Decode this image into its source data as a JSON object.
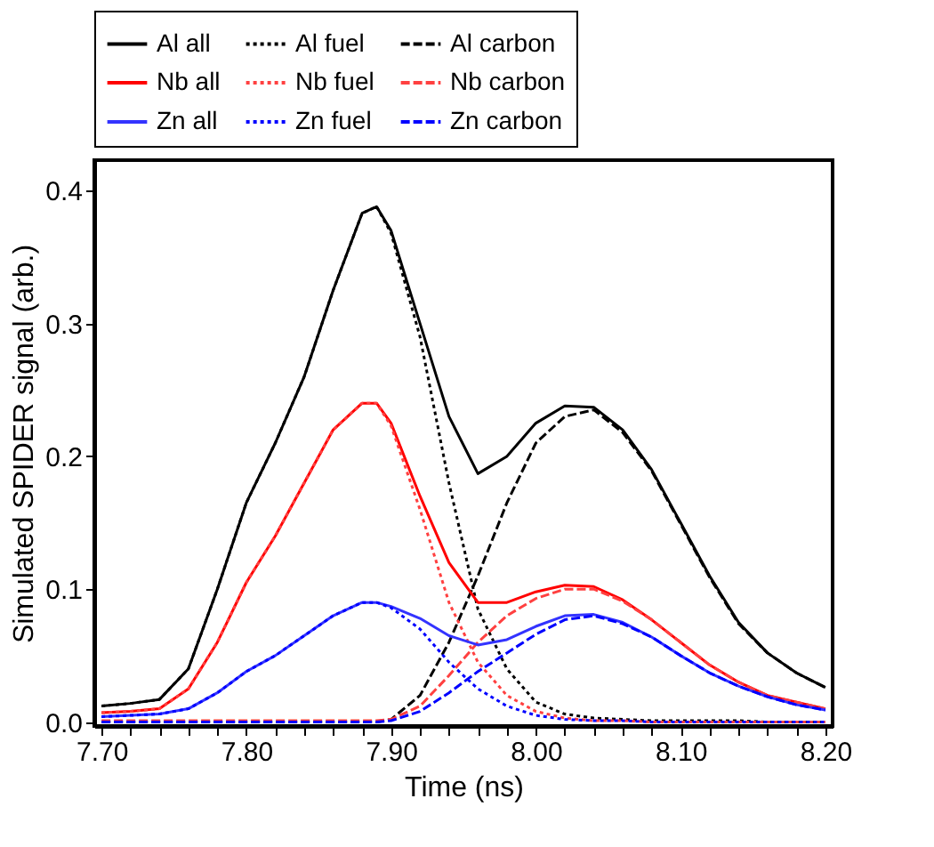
{
  "chart_data": {
    "type": "line",
    "xlabel": "Time (ns)",
    "ylabel": "Simulated SPIDER signal (arb.)",
    "xlim": [
      7.695,
      8.205
    ],
    "ylim": [
      -0.003,
      0.423
    ],
    "xticks": [
      {
        "value": 7.7,
        "label": "7.70"
      },
      {
        "value": 7.72,
        "label": null
      },
      {
        "value": 7.74,
        "label": null
      },
      {
        "value": 7.76,
        "label": null
      },
      {
        "value": 7.78,
        "label": null
      },
      {
        "value": 7.8,
        "label": "7.80"
      },
      {
        "value": 7.82,
        "label": null
      },
      {
        "value": 7.84,
        "label": null
      },
      {
        "value": 7.86,
        "label": null
      },
      {
        "value": 7.88,
        "label": null
      },
      {
        "value": 7.9,
        "label": "7.90"
      },
      {
        "value": 7.92,
        "label": null
      },
      {
        "value": 7.94,
        "label": null
      },
      {
        "value": 7.96,
        "label": null
      },
      {
        "value": 7.98,
        "label": null
      },
      {
        "value": 8.0,
        "label": "8.00"
      },
      {
        "value": 8.02,
        "label": null
      },
      {
        "value": 8.04,
        "label": null
      },
      {
        "value": 8.06,
        "label": null
      },
      {
        "value": 8.08,
        "label": null
      },
      {
        "value": 8.1,
        "label": "8.10"
      },
      {
        "value": 8.12,
        "label": null
      },
      {
        "value": 8.14,
        "label": null
      },
      {
        "value": 8.16,
        "label": null
      },
      {
        "value": 8.18,
        "label": null
      },
      {
        "value": 8.2,
        "label": "8.20"
      }
    ],
    "yticks": [
      {
        "value": 0,
        "label": "0.0"
      },
      0.1,
      0.2,
      0.3,
      0.4
    ],
    "grid": false,
    "legend": "top",
    "marker": "none",
    "x": [
      7.7,
      7.72,
      7.74,
      7.76,
      7.78,
      7.8,
      7.82,
      7.84,
      7.86,
      7.88,
      7.89,
      7.9,
      7.92,
      7.94,
      7.96,
      7.98,
      8.0,
      8.02,
      8.04,
      8.06,
      8.08,
      8.1,
      8.12,
      8.14,
      8.16,
      8.18,
      8.2
    ],
    "series": [
      {
        "name": "Al all",
        "color": "#000000",
        "line_style": "solid",
        "values": [
          0.012,
          0.014,
          0.017,
          0.04,
          0.1,
          0.165,
          0.21,
          0.26,
          0.325,
          0.383,
          0.388,
          0.37,
          0.3,
          0.23,
          0.187,
          0.2,
          0.225,
          0.238,
          0.237,
          0.22,
          0.19,
          0.15,
          0.11,
          0.075,
          0.052,
          0.037,
          0.026
        ]
      },
      {
        "name": "Al fuel",
        "color": "#000000",
        "line_style": "dotted",
        "values": [
          0.012,
          0.014,
          0.017,
          0.04,
          0.1,
          0.165,
          0.21,
          0.26,
          0.325,
          0.383,
          0.388,
          0.368,
          0.29,
          0.18,
          0.085,
          0.04,
          0.015,
          0.006,
          0.003,
          0.002,
          0.001,
          0.001,
          0.001,
          0.001,
          0,
          0,
          0
        ]
      },
      {
        "name": "Al carbon",
        "color": "#000000",
        "line_style": "dashed",
        "values": [
          0,
          0,
          0,
          0,
          0,
          0,
          0,
          0,
          0,
          0,
          0,
          0.002,
          0.02,
          0.06,
          0.11,
          0.165,
          0.21,
          0.23,
          0.235,
          0.218,
          0.189,
          0.149,
          0.109,
          0.074,
          0.052,
          0.037,
          0.026
        ]
      },
      {
        "name": "Nb all",
        "color": "#ff0000",
        "line_style": "solid",
        "values": [
          0.007,
          0.008,
          0.01,
          0.025,
          0.06,
          0.105,
          0.14,
          0.18,
          0.22,
          0.24,
          0.24,
          0.225,
          0.17,
          0.12,
          0.09,
          0.09,
          0.098,
          0.103,
          0.102,
          0.092,
          0.077,
          0.06,
          0.043,
          0.03,
          0.02,
          0.015,
          0.01
        ]
      },
      {
        "name": "Nb fuel",
        "color": "#ff4040",
        "line_style": "dotted",
        "values": [
          0.007,
          0.008,
          0.01,
          0.025,
          0.06,
          0.105,
          0.14,
          0.18,
          0.22,
          0.24,
          0.24,
          0.223,
          0.16,
          0.09,
          0.045,
          0.02,
          0.008,
          0.003,
          0.001,
          0.001,
          0,
          0,
          0,
          0,
          0,
          0,
          0
        ]
      },
      {
        "name": "Nb carbon",
        "color": "#ff4040",
        "line_style": "dashed",
        "values": [
          0.001,
          0.001,
          0.001,
          0.001,
          0.001,
          0.001,
          0.001,
          0.001,
          0.001,
          0.001,
          0.001,
          0.002,
          0.012,
          0.035,
          0.06,
          0.08,
          0.093,
          0.1,
          0.1,
          0.091,
          0.077,
          0.06,
          0.043,
          0.03,
          0.02,
          0.015,
          0.01
        ]
      },
      {
        "name": "Zn all",
        "color": "#3333ff",
        "line_style": "solid",
        "values": [
          0.004,
          0.005,
          0.006,
          0.01,
          0.022,
          0.038,
          0.05,
          0.065,
          0.08,
          0.09,
          0.09,
          0.087,
          0.078,
          0.065,
          0.058,
          0.062,
          0.072,
          0.08,
          0.081,
          0.075,
          0.064,
          0.05,
          0.037,
          0.027,
          0.019,
          0.013,
          0.009
        ]
      },
      {
        "name": "Zn fuel",
        "color": "#0000ff",
        "line_style": "dotted",
        "values": [
          0.004,
          0.005,
          0.006,
          0.01,
          0.022,
          0.038,
          0.05,
          0.065,
          0.08,
          0.09,
          0.09,
          0.086,
          0.07,
          0.045,
          0.025,
          0.012,
          0.005,
          0.002,
          0.001,
          0.001,
          0,
          0,
          0,
          0,
          0,
          0,
          0
        ]
      },
      {
        "name": "Zn carbon",
        "color": "#0000ff",
        "line_style": "dashed",
        "values": [
          0,
          0,
          0,
          0,
          0,
          0,
          0,
          0,
          0,
          0,
          0,
          0.001,
          0.008,
          0.022,
          0.038,
          0.052,
          0.066,
          0.077,
          0.08,
          0.074,
          0.064,
          0.05,
          0.037,
          0.027,
          0.019,
          0.013,
          0.009
        ]
      }
    ]
  }
}
